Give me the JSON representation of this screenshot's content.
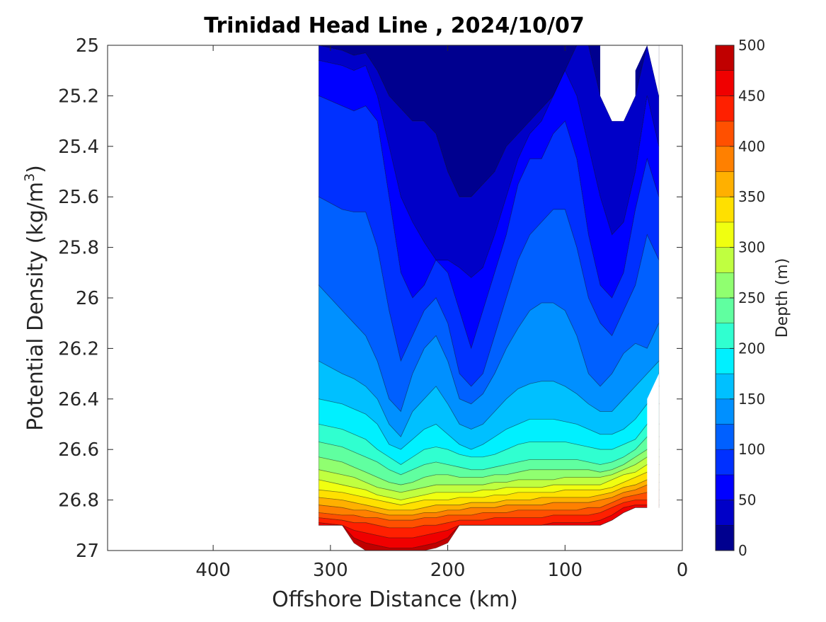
{
  "chart_data": {
    "type": "filled-contour",
    "title": "Trinidad Head Line , 2024/10/07",
    "xlabel": "Offshore Distance (km)",
    "ylabel_main": "Potential Density (kg/m",
    "ylabel_sup": "3",
    "ylabel_close": ")",
    "x_reversed": true,
    "xlim": [
      490,
      0
    ],
    "ylim": [
      25,
      27
    ],
    "y_reversed": true,
    "xticks": [
      {
        "value": 400,
        "label": "400"
      },
      {
        "value": 300,
        "label": "300"
      },
      {
        "value": 200,
        "label": "200"
      },
      {
        "value": 100,
        "label": "100"
      },
      {
        "value": 0,
        "label": "0"
      }
    ],
    "yticks": [
      {
        "value": 25,
        "label": "25"
      },
      {
        "value": 25.2,
        "label": "25.2"
      },
      {
        "value": 25.4,
        "label": "25.4"
      },
      {
        "value": 25.6,
        "label": "25.6"
      },
      {
        "value": 25.8,
        "label": "25.8"
      },
      {
        "value": 26,
        "label": "26"
      },
      {
        "value": 26.2,
        "label": "26.2"
      },
      {
        "value": 26.4,
        "label": "26.4"
      },
      {
        "value": 26.6,
        "label": "26.6"
      },
      {
        "value": 26.8,
        "label": "26.8"
      },
      {
        "value": 27,
        "label": "27"
      }
    ],
    "colorbar": {
      "label": "Depth (m)",
      "min": 0,
      "max": 500,
      "step": 25,
      "ticks": [
        {
          "value": 0,
          "label": "0"
        },
        {
          "value": 50,
          "label": "50"
        },
        {
          "value": 100,
          "label": "100"
        },
        {
          "value": 150,
          "label": "150"
        },
        {
          "value": 200,
          "label": "200"
        },
        {
          "value": 250,
          "label": "250"
        },
        {
          "value": 300,
          "label": "300"
        },
        {
          "value": 350,
          "label": "350"
        },
        {
          "value": 400,
          "label": "400"
        },
        {
          "value": 450,
          "label": "450"
        },
        {
          "value": 500,
          "label": "500"
        }
      ],
      "colors": [
        "#00008f",
        "#0000c8",
        "#0000ff",
        "#0030ff",
        "#0060ff",
        "#0090ff",
        "#00c0ff",
        "#00f0ff",
        "#30ffd0",
        "#60ffa0",
        "#90ff70",
        "#c0ff40",
        "#f0ff10",
        "#ffe000",
        "#ffb000",
        "#ff8000",
        "#ff5000",
        "#ff2000",
        "#f00000",
        "#c00000"
      ]
    },
    "stations_x": [
      310,
      290,
      280,
      270,
      260,
      250,
      240,
      230,
      220,
      210,
      200,
      190,
      180,
      170,
      160,
      150,
      140,
      130,
      120,
      110,
      100,
      90,
      80,
      70,
      60,
      50,
      40,
      30,
      20
    ],
    "depth_levels": [
      {
        "depth": 0,
        "top": [
          null,
          null,
          null,
          null,
          null,
          null,
          null,
          null,
          null,
          null,
          null,
          null,
          null,
          null,
          null,
          null,
          null,
          null,
          null,
          null,
          null,
          null,
          null,
          null,
          null,
          null,
          null,
          null,
          null
        ],
        "bottom": [
          25.0,
          25.02,
          25.04,
          25.03,
          25.1,
          25.2,
          25.25,
          25.3,
          25.3,
          25.35,
          25.5,
          25.6,
          25.6,
          25.55,
          25.5,
          25.4,
          25.35,
          25.3,
          25.25,
          25.2,
          25.1,
          25.0,
          25.0,
          25.2,
          25.3,
          25.3,
          25.2,
          25.0,
          25.2
        ]
      },
      {
        "depth": 25,
        "bottom": [
          25.06,
          25.08,
          25.1,
          25.08,
          25.2,
          25.4,
          25.6,
          25.7,
          25.78,
          25.85,
          25.85,
          25.88,
          25.92,
          25.88,
          25.75,
          25.6,
          25.45,
          25.35,
          25.3,
          25.2,
          25.1,
          25.2,
          25.4,
          25.6,
          25.75,
          25.7,
          25.5,
          25.2,
          25.4
        ]
      },
      {
        "depth": 50,
        "bottom": [
          25.2,
          25.24,
          25.26,
          25.24,
          25.3,
          25.6,
          25.9,
          26.0,
          25.95,
          25.85,
          25.9,
          26.05,
          26.2,
          26.05,
          25.9,
          25.75,
          25.55,
          25.45,
          25.45,
          25.35,
          25.3,
          25.45,
          25.75,
          25.95,
          26.0,
          25.9,
          25.65,
          25.45,
          25.6
        ]
      },
      {
        "depth": 75,
        "bottom": [
          25.6,
          25.65,
          25.66,
          25.66,
          25.8,
          26.05,
          26.25,
          26.15,
          26.05,
          26.0,
          26.1,
          26.3,
          26.35,
          26.3,
          26.15,
          26.0,
          25.85,
          25.75,
          25.7,
          25.65,
          25.65,
          25.8,
          26.0,
          26.1,
          26.15,
          26.05,
          25.95,
          25.75,
          25.85
        ]
      },
      {
        "depth": 100,
        "bottom": [
          25.95,
          26.05,
          26.1,
          26.15,
          26.25,
          26.4,
          26.45,
          26.3,
          26.2,
          26.15,
          26.25,
          26.4,
          26.42,
          26.38,
          26.3,
          26.2,
          26.12,
          26.05,
          26.02,
          26.02,
          26.05,
          26.15,
          26.3,
          26.35,
          26.3,
          26.22,
          26.18,
          26.2,
          26.1
        ]
      },
      {
        "depth": 125,
        "bottom": [
          26.25,
          26.3,
          26.32,
          26.35,
          26.4,
          26.5,
          26.55,
          26.45,
          26.4,
          26.35,
          26.42,
          26.5,
          26.52,
          26.5,
          26.45,
          26.4,
          26.36,
          26.34,
          26.33,
          26.33,
          26.35,
          26.38,
          26.42,
          26.45,
          26.45,
          26.4,
          26.35,
          26.3,
          26.25
        ]
      },
      {
        "depth": 150,
        "bottom": [
          26.4,
          26.42,
          26.44,
          26.46,
          26.5,
          26.58,
          26.6,
          26.56,
          26.52,
          26.5,
          26.54,
          26.58,
          26.6,
          26.58,
          26.55,
          26.52,
          26.5,
          26.48,
          26.48,
          26.48,
          26.49,
          26.5,
          26.52,
          26.54,
          26.54,
          26.52,
          26.48,
          26.42,
          26.35
        ]
      },
      {
        "depth": 175,
        "bottom": [
          26.5,
          26.52,
          26.54,
          26.56,
          26.6,
          26.63,
          26.66,
          26.63,
          26.6,
          26.59,
          26.6,
          26.62,
          26.63,
          26.63,
          26.62,
          26.6,
          26.58,
          26.57,
          26.57,
          26.57,
          26.57,
          26.58,
          26.59,
          26.6,
          26.6,
          26.58,
          26.56,
          26.5,
          26.42
        ]
      },
      {
        "depth": 200,
        "bottom": [
          26.57,
          26.59,
          26.61,
          26.63,
          26.65,
          26.68,
          26.7,
          26.68,
          26.66,
          26.65,
          26.66,
          26.67,
          26.68,
          26.68,
          26.67,
          26.66,
          26.65,
          26.64,
          26.64,
          26.64,
          26.64,
          26.64,
          26.65,
          26.66,
          26.65,
          26.63,
          26.6,
          26.55,
          26.5
        ]
      },
      {
        "depth": 225,
        "bottom": [
          26.63,
          26.65,
          26.67,
          26.69,
          26.71,
          26.73,
          26.74,
          26.73,
          26.71,
          26.7,
          26.7,
          26.71,
          26.71,
          26.71,
          26.7,
          26.7,
          26.69,
          26.68,
          26.68,
          26.68,
          26.68,
          26.68,
          26.68,
          26.69,
          26.68,
          26.66,
          26.63,
          26.6,
          26.55
        ]
      },
      {
        "depth": 250,
        "bottom": [
          26.68,
          26.7,
          26.71,
          26.73,
          26.75,
          26.76,
          26.77,
          26.76,
          26.75,
          26.74,
          26.74,
          26.74,
          26.74,
          26.74,
          26.73,
          26.73,
          26.72,
          26.72,
          26.72,
          26.72,
          26.71,
          26.71,
          26.71,
          26.71,
          26.7,
          26.68,
          26.66,
          26.63,
          26.6
        ]
      },
      {
        "depth": 275,
        "bottom": [
          26.72,
          26.74,
          26.75,
          26.76,
          26.78,
          26.79,
          26.8,
          26.79,
          26.78,
          26.77,
          26.77,
          26.77,
          26.77,
          26.76,
          26.76,
          26.75,
          26.75,
          26.75,
          26.75,
          26.74,
          26.74,
          26.74,
          26.74,
          26.74,
          26.72,
          26.7,
          26.69,
          26.66,
          26.63
        ]
      },
      {
        "depth": 300,
        "bottom": [
          26.76,
          26.77,
          26.78,
          26.79,
          26.8,
          26.81,
          26.82,
          26.81,
          26.8,
          26.8,
          26.8,
          26.79,
          26.79,
          26.79,
          26.78,
          26.78,
          26.77,
          26.77,
          26.77,
          26.77,
          26.76,
          26.76,
          26.76,
          26.76,
          26.75,
          26.73,
          26.71,
          26.69,
          26.66
        ]
      },
      {
        "depth": 325,
        "bottom": [
          26.79,
          26.8,
          26.81,
          26.82,
          26.83,
          26.84,
          26.84,
          26.84,
          26.83,
          26.82,
          26.82,
          26.82,
          26.81,
          26.81,
          26.81,
          26.8,
          26.8,
          26.8,
          26.79,
          26.79,
          26.79,
          26.79,
          26.79,
          26.78,
          26.77,
          26.75,
          26.74,
          26.72,
          26.7
        ]
      },
      {
        "depth": 350,
        "bottom": [
          26.82,
          26.83,
          26.84,
          26.84,
          26.85,
          26.86,
          26.86,
          26.86,
          26.85,
          26.85,
          26.84,
          26.84,
          26.83,
          26.83,
          26.83,
          26.82,
          26.82,
          26.82,
          26.82,
          26.81,
          26.81,
          26.81,
          26.81,
          26.8,
          26.79,
          26.77,
          26.76,
          26.74,
          26.73
        ]
      },
      {
        "depth": 375,
        "bottom": [
          26.85,
          26.86,
          26.86,
          26.87,
          26.87,
          26.88,
          26.88,
          26.88,
          26.87,
          26.87,
          26.86,
          26.86,
          26.86,
          26.85,
          26.85,
          26.85,
          26.84,
          26.84,
          26.84,
          26.84,
          26.84,
          26.84,
          26.83,
          26.83,
          26.81,
          26.79,
          26.78,
          26.77,
          26.76
        ]
      },
      {
        "depth": 400,
        "bottom": [
          26.87,
          26.88,
          26.89,
          26.89,
          26.9,
          26.91,
          26.91,
          26.91,
          26.9,
          26.9,
          26.89,
          26.88,
          26.88,
          26.88,
          26.87,
          26.87,
          26.87,
          26.87,
          26.87,
          26.86,
          26.86,
          26.86,
          26.86,
          26.85,
          26.83,
          26.81,
          26.8,
          26.8,
          26.8
        ]
      },
      {
        "depth": 425,
        "bottom": [
          26.89,
          26.9,
          26.92,
          26.93,
          26.94,
          26.95,
          26.95,
          26.95,
          26.94,
          26.93,
          26.92,
          26.9,
          26.9,
          26.9,
          26.9,
          26.9,
          26.9,
          26.9,
          26.9,
          26.89,
          26.89,
          26.89,
          26.89,
          26.88,
          26.86,
          26.83,
          26.82,
          26.82,
          26.82
        ]
      },
      {
        "depth": 450,
        "bottom": [
          26.9,
          26.9,
          26.95,
          26.97,
          26.98,
          26.99,
          26.99,
          26.99,
          26.98,
          26.97,
          26.95,
          26.9,
          26.9,
          26.9,
          26.9,
          26.9,
          26.9,
          26.9,
          26.9,
          26.9,
          26.9,
          26.9,
          26.9,
          26.9,
          26.88,
          26.85,
          26.83,
          26.83,
          26.83
        ]
      },
      {
        "depth": 475,
        "bottom": [
          26.9,
          26.9,
          26.97,
          27.0,
          27.0,
          27.0,
          27.0,
          27.0,
          27.0,
          26.99,
          26.97,
          26.9,
          26.9,
          26.9,
          26.9,
          26.9,
          26.9,
          26.9,
          26.9,
          26.9,
          26.9,
          26.9,
          26.9,
          26.9,
          26.88,
          26.85,
          26.83,
          26.83,
          26.83
        ]
      }
    ]
  }
}
